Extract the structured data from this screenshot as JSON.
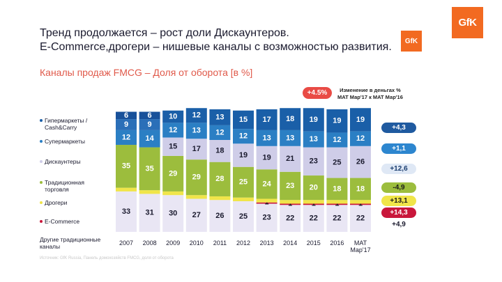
{
  "logo": {
    "text": "GfK",
    "color": "#f26a21"
  },
  "title_lines": [
    "Тренд продолжается – рост доли Дискаунтеров.",
    "E-Commerce,дрогери – нишевые каналы с возможностью развития."
  ],
  "subtitle": "Каналы продаж FMCG – Доля от оборота [в %]",
  "money_change": {
    "badge": "+4.5%",
    "line1": "Изменение в деньгах %",
    "line2": "MAT Мар'17 к MAT Мар'16"
  },
  "legend": [
    {
      "label": "Гипермаркеты / Cash&Carry",
      "color": "#1a5fa8"
    },
    {
      "label": "Супермаркеты",
      "color": "#2b7fc4"
    },
    {
      "label": "Дискаунтеры",
      "color": "#cfcde8"
    },
    {
      "label": "Традиционная торговля",
      "color": "#9cbd3d"
    },
    {
      "label": "Дрогери",
      "color": "#f0e54a"
    },
    {
      "label": "E-Commerce",
      "color": "#c9173b"
    }
  ],
  "other_label": "Другие традиционные каналы",
  "changes": [
    {
      "value": "+4,3",
      "bg": "#1f5aa0",
      "fg": "#ffffff"
    },
    {
      "value": "+1,1",
      "bg": "#2d86cf",
      "fg": "#ffffff"
    },
    {
      "value": "+12,6",
      "bg": "#dfe8f5",
      "fg": "#1a3d6e"
    },
    {
      "value": "-4,9",
      "bg": "#9cbd3d",
      "fg": "#1a1a1a"
    },
    {
      "value": "+13,1",
      "bg": "#f0e54a",
      "fg": "#1a1a1a"
    },
    {
      "value": "+14,3",
      "bg": "#c9173b",
      "fg": "#ffffff"
    },
    {
      "value": "+4,9",
      "bg": "#ffffff",
      "fg": "#1a1a2e"
    }
  ],
  "source_note": "Источник: GfK Russia, Панель домохозяйств FMCG, доля от оборота",
  "chart_data": {
    "type": "bar",
    "stacked": true,
    "title": "Каналы продаж FMCG – Доля от оборота [в %]",
    "categories": [
      "2007",
      "2008",
      "2009",
      "2010",
      "2011",
      "2012",
      "2013",
      "2014",
      "2015",
      "2016",
      "MAT Мар'17"
    ],
    "series": [
      {
        "name": "Другие традиционные каналы",
        "color": "#e9e6f4",
        "text_color": "#1a1a2e",
        "values": [
          33,
          31,
          30,
          27,
          26,
          25,
          23,
          22,
          22,
          22,
          22
        ]
      },
      {
        "name": "E-Commerce",
        "color": "#c9173b",
        "text_color": "#1a1a2e",
        "values": [
          0,
          0,
          0,
          0,
          0,
          0,
          1,
          1,
          1,
          1,
          1
        ]
      },
      {
        "name": "Дрогери",
        "color": "#f0e54a",
        "text_color": "#1a1a2e",
        "values": [
          3,
          3,
          3,
          3,
          3,
          3,
          3,
          3,
          3,
          3,
          3
        ]
      },
      {
        "name": "Традиционная торговля",
        "color": "#9cbd3d",
        "text_color": "#ffffff",
        "values": [
          35,
          35,
          29,
          29,
          28,
          25,
          24,
          23,
          20,
          18,
          18
        ]
      },
      {
        "name": "Дискаунтеры",
        "color": "#cfcde8",
        "text_color": "#1a1a2e",
        "values": [
          0,
          0,
          15,
          17,
          18,
          19,
          19,
          21,
          23,
          25,
          26
        ]
      },
      {
        "name": "Супермаркеты",
        "color": "#2b7fc4",
        "text_color": "#ffffff",
        "values": [
          12,
          14,
          12,
          13,
          12,
          12,
          13,
          13,
          13,
          12,
          12
        ]
      },
      {
        "name": "Гипермаркеты / Cash&Carry",
        "color": "#1a5fa8",
        "text_color": "#ffffff",
        "values": [
          15,
          15,
          10,
          12,
          13,
          15,
          17,
          18,
          19,
          19,
          19
        ]
      }
    ],
    "hyper_split": [
      {
        "category": "2007",
        "values": [
          6,
          9
        ]
      },
      {
        "category": "2008",
        "values": [
          6,
          9
        ]
      }
    ],
    "displayed_labels": [
      [
        "33",
        "",
        "",
        "35",
        "",
        "12",
        "6|9"
      ],
      [
        "31",
        "",
        "",
        "35",
        "",
        "14",
        "6|9"
      ],
      [
        "30",
        "",
        "",
        "29",
        "15",
        "12",
        "10"
      ],
      [
        "27",
        "",
        "",
        "29",
        "17",
        "13",
        "12"
      ],
      [
        "26",
        "",
        "",
        "28",
        "18",
        "12",
        "13"
      ],
      [
        "25",
        "",
        "",
        "25",
        "19",
        "12",
        "15"
      ],
      [
        "23",
        "1",
        "",
        "24",
        "19",
        "13",
        "17"
      ],
      [
        "22",
        "1",
        "",
        "23",
        "21",
        "13",
        "18"
      ],
      [
        "22",
        "1",
        "",
        "20",
        "23",
        "13",
        "19"
      ],
      [
        "22",
        "1",
        "",
        "18",
        "25",
        "12",
        "19"
      ],
      [
        "22",
        "1",
        "",
        "18",
        "26",
        "12",
        "19"
      ]
    ],
    "ylim": [
      0,
      100
    ]
  }
}
